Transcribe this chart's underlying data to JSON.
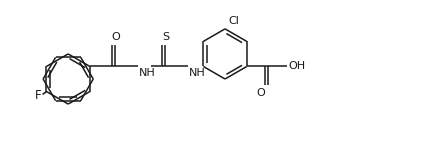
{
  "bg_color": "#ffffff",
  "line_color": "#1a1a1a",
  "lw": 1.1,
  "fs": 8.0,
  "fig_w": 4.4,
  "fig_h": 1.58,
  "dpi": 100,
  "r": 0.52,
  "bl": 0.52,
  "dg": 0.07,
  "ifr": 0.14,
  "xlim": [
    -0.3,
    8.8
  ],
  "ylim": [
    -1.55,
    1.55
  ]
}
